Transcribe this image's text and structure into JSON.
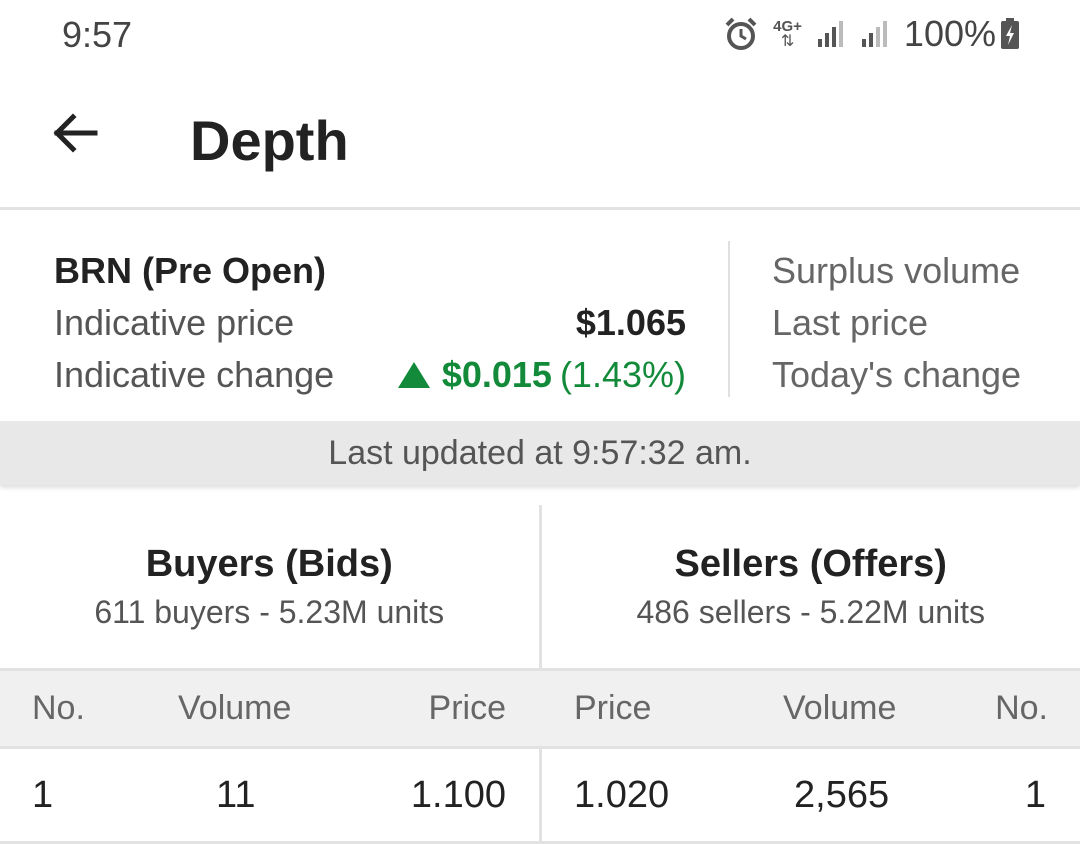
{
  "status_bar": {
    "time": "9:57",
    "network": "4G+",
    "battery": "100%"
  },
  "app_bar": {
    "title": "Depth",
    "back_icon": "arrow-left-icon"
  },
  "summary": {
    "stock_title": "BRN (Pre Open)",
    "indicative_price_label": "Indicative price",
    "indicative_price_value": "$1.065",
    "indicative_change_label": "Indicative change",
    "indicative_change_amount": "$0.015",
    "indicative_change_percent": "(1.43%)",
    "change_color": "#128a3a",
    "right_labels": [
      "Surplus volume",
      "Last price",
      "Today's change"
    ]
  },
  "last_updated": "Last updated at 9:57:32 am.",
  "buyers": {
    "title": "Buyers (Bids)",
    "subtitle": "611 buyers - 5.23M units"
  },
  "sellers": {
    "title": "Sellers (Offers)",
    "subtitle": "486 sellers - 5.22M units"
  },
  "columns": {
    "buy_no": "No.",
    "buy_volume": "Volume",
    "buy_price": "Price",
    "sell_price": "Price",
    "sell_volume": "Volume",
    "sell_no": "No."
  },
  "rows": [
    {
      "buy_no": "1",
      "buy_volume": "11",
      "buy_price": "1.100",
      "sell_price": "1.020",
      "sell_volume": "2,565",
      "sell_no": "1"
    }
  ]
}
